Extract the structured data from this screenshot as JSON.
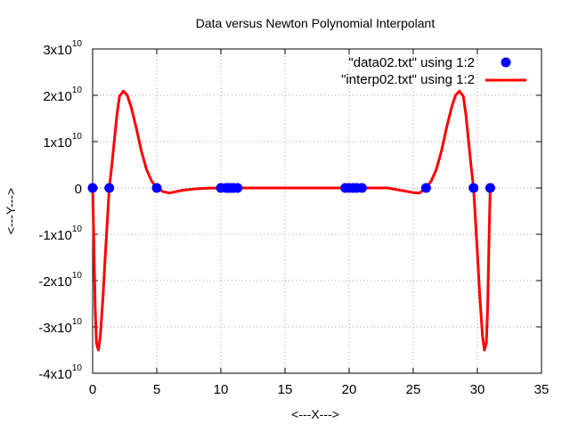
{
  "chart_data": {
    "type": "scatter",
    "title": "Data versus Newton Polynomial Interpolant",
    "xlabel": "<---X--->",
    "ylabel": "<---Y--->",
    "xlim": [
      0,
      35
    ],
    "ylim": [
      -40000000000,
      30000000000
    ],
    "x_ticks": [
      "0",
      "5",
      "10",
      "15",
      "20",
      "25",
      "30",
      "35"
    ],
    "y_ticks": [
      {
        "mantissa": "3x10",
        "exp": "10"
      },
      {
        "mantissa": "2x10",
        "exp": "10"
      },
      {
        "mantissa": "1x10",
        "exp": "10"
      },
      {
        "mantissa": "0",
        "exp": ""
      },
      {
        "mantissa": "-1x10",
        "exp": "10"
      },
      {
        "mantissa": "-2x10",
        "exp": "10"
      },
      {
        "mantissa": "-3x10",
        "exp": "10"
      },
      {
        "mantissa": "-4x10",
        "exp": "10"
      }
    ],
    "grid": true,
    "legend_position": "top-right",
    "series": [
      {
        "name": "\"data02.txt\" using 1:2",
        "style": "points",
        "color": "#0000ff",
        "x": [
          0,
          1.3,
          5,
          10,
          10.4,
          10.6,
          10.8,
          11,
          11.3,
          19.7,
          20,
          20.3,
          20.6,
          21,
          26,
          29.7,
          31
        ],
        "y": [
          0,
          0,
          0,
          0,
          0,
          0,
          0,
          0,
          0,
          0,
          0,
          0,
          0,
          0,
          0,
          0,
          0
        ]
      },
      {
        "name": "\"interp02.txt\" using 1:2",
        "style": "line",
        "color": "#ff0000",
        "x": [
          0,
          0.1,
          0.2,
          0.3,
          0.45,
          0.6,
          0.8,
          1.0,
          1.2,
          1.3,
          1.5,
          1.7,
          1.9,
          2.1,
          2.4,
          2.7,
          3.0,
          3.4,
          3.8,
          4.2,
          4.6,
          5.0,
          5.5,
          6.0,
          7.0,
          8.0,
          9.0,
          10.0,
          12.0,
          15.5,
          19.0,
          21.0,
          23.0,
          24.0,
          25.0,
          25.5,
          26.0,
          26.4,
          26.8,
          27.2,
          27.6,
          28.0,
          28.3,
          28.6,
          28.9,
          29.1,
          29.3,
          29.5,
          29.7,
          29.8,
          30.0,
          30.2,
          30.4,
          30.55,
          30.7,
          30.8,
          30.9,
          31.0
        ],
        "y": [
          0,
          -12000000000,
          -26000000000,
          -33500000000,
          -35000000000,
          -32000000000,
          -24000000000,
          -14000000000,
          -4500000000,
          0,
          5000000000,
          10500000000,
          16000000000,
          19800000000,
          20900000000,
          20000000000,
          17500000000,
          13000000000,
          8000000000,
          4000000000,
          1500000000,
          0,
          -800000000,
          -1100000000,
          -500000000,
          -200000000,
          -50000000,
          0,
          0,
          0,
          0,
          0,
          0,
          -500000000,
          -1000000000,
          -1100000000,
          0,
          1500000000,
          4000000000,
          8000000000,
          13000000000,
          17500000000,
          20000000000,
          20900000000,
          19800000000,
          16000000000,
          10500000000,
          5000000000,
          0,
          -4500000000,
          -14000000000,
          -24000000000,
          -32000000000,
          -35000000000,
          -33500000000,
          -26000000000,
          -12000000000,
          0
        ]
      }
    ]
  }
}
